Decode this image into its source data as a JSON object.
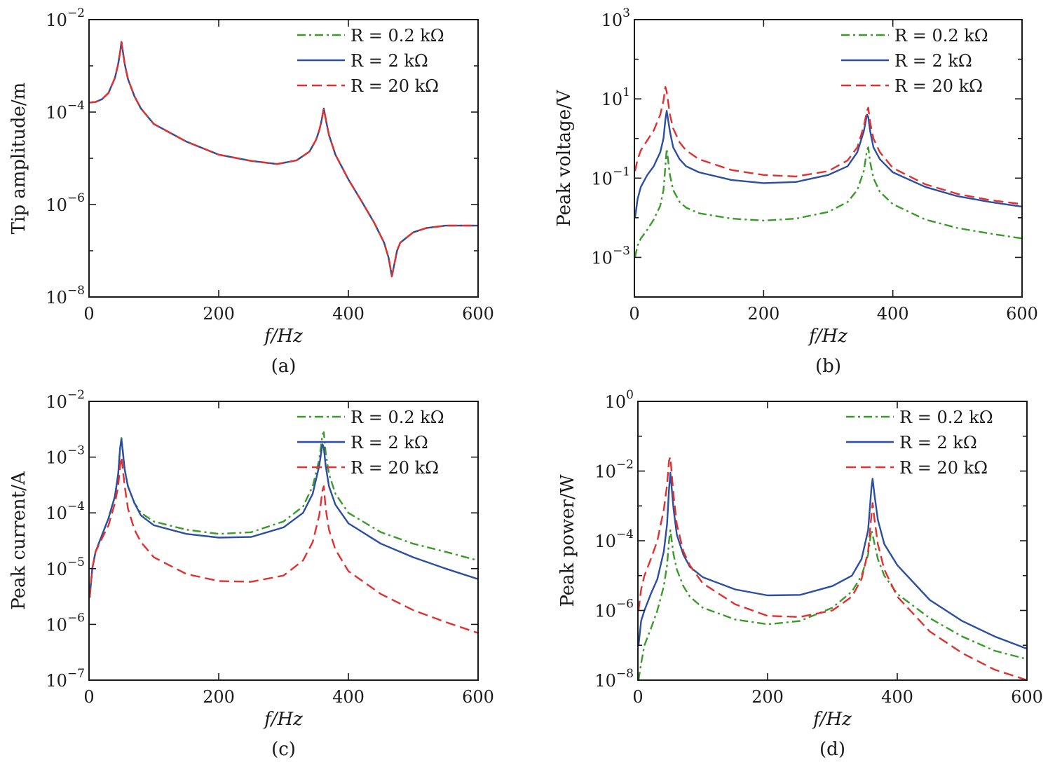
{
  "chart_data": [
    {
      "type": "line",
      "panel_label": "(a)",
      "xlabel": "f/Hz",
      "ylabel": "Tip amplitude/m",
      "xlim": [
        0,
        600
      ],
      "ylim": [
        1e-08,
        0.01
      ],
      "y_scale": "log",
      "x_ticks": [
        "0",
        "200",
        "400",
        "600"
      ],
      "y_ticks": [
        {
          "base": "10",
          "exp": "−8"
        },
        {
          "base": "10",
          "exp": "−6"
        },
        {
          "base": "10",
          "exp": "−4"
        },
        {
          "base": "10",
          "exp": "−2"
        }
      ],
      "legend_position": "top-right",
      "series": [
        {
          "name": "R = 0.2 kΩ",
          "color": "#3a9a2a",
          "dash": "dashdot",
          "x": [
            0,
            10,
            20,
            30,
            40,
            45,
            48,
            50,
            55,
            60,
            70,
            80,
            100,
            150,
            200,
            250,
            290,
            320,
            340,
            350,
            355,
            358,
            362,
            366,
            370,
            380,
            400,
            420,
            440,
            455,
            462,
            467,
            470,
            475,
            480,
            500,
            520,
            550,
            600
          ],
          "y": [
            0.00016,
            0.000165,
            0.00019,
            0.00026,
            0.00055,
            0.0011,
            0.002,
            0.0033,
            0.0011,
            0.00052,
            0.00022,
            0.00012,
            5.5e-05,
            2.3e-05,
            1.2e-05,
            8.8e-06,
            7.5e-06,
            9e-06,
            1.4e-05,
            2.5e-05,
            4e-05,
            6e-05,
            0.00012,
            6e-05,
            3.2e-05,
            1.2e-05,
            3.5e-06,
            1.2e-06,
            4e-07,
            1.5e-07,
            7e-08,
            2.8e-08,
            4.5e-08,
            1e-07,
            1.5e-07,
            2.5e-07,
            3.1e-07,
            3.5e-07,
            3.5e-07
          ]
        },
        {
          "name": "R = 2 kΩ",
          "color": "#2b4ea2",
          "dash": "solid",
          "x": [
            0,
            10,
            20,
            30,
            40,
            45,
            48,
            50,
            55,
            60,
            70,
            80,
            100,
            150,
            200,
            250,
            290,
            320,
            340,
            350,
            355,
            358,
            362,
            366,
            370,
            380,
            400,
            420,
            440,
            455,
            462,
            467,
            470,
            475,
            480,
            500,
            520,
            550,
            600
          ],
          "y": [
            0.00016,
            0.000165,
            0.00019,
            0.00026,
            0.00055,
            0.0011,
            0.002,
            0.0033,
            0.0011,
            0.00052,
            0.00022,
            0.00012,
            5.5e-05,
            2.3e-05,
            1.2e-05,
            8.8e-06,
            7.5e-06,
            9e-06,
            1.4e-05,
            2.5e-05,
            4e-05,
            6e-05,
            0.00012,
            6e-05,
            3.2e-05,
            1.2e-05,
            3.5e-06,
            1.2e-06,
            4e-07,
            1.5e-07,
            7e-08,
            2.8e-08,
            4.5e-08,
            1e-07,
            1.5e-07,
            2.5e-07,
            3.1e-07,
            3.5e-07,
            3.5e-07
          ]
        },
        {
          "name": "R = 20 kΩ",
          "color": "#e03030",
          "dash": "dashed",
          "x": [
            0,
            10,
            20,
            30,
            40,
            45,
            48,
            50,
            55,
            60,
            70,
            80,
            100,
            150,
            200,
            250,
            290,
            320,
            340,
            350,
            355,
            358,
            362,
            366,
            370,
            380,
            400,
            420,
            440,
            455,
            462,
            467,
            470,
            475,
            480,
            500,
            520,
            550,
            600
          ],
          "y": [
            0.00016,
            0.000165,
            0.00019,
            0.00026,
            0.00055,
            0.0011,
            0.002,
            0.0033,
            0.0011,
            0.00052,
            0.00022,
            0.00012,
            5.5e-05,
            2.3e-05,
            1.2e-05,
            8.8e-06,
            7.5e-06,
            9e-06,
            1.4e-05,
            2.5e-05,
            4e-05,
            6e-05,
            0.00012,
            6e-05,
            3.2e-05,
            1.2e-05,
            3.5e-06,
            1.2e-06,
            4e-07,
            1.5e-07,
            7e-08,
            2.8e-08,
            4.5e-08,
            1e-07,
            1.5e-07,
            2.5e-07,
            3.1e-07,
            3.5e-07,
            3.5e-07
          ]
        }
      ]
    },
    {
      "type": "line",
      "panel_label": "(b)",
      "xlabel": "f/Hz",
      "ylabel": "Peak voltage/V",
      "xlim": [
        0,
        600
      ],
      "ylim": [
        0.0001,
        1000
      ],
      "y_scale": "log",
      "x_ticks": [
        "0",
        "200",
        "400",
        "600"
      ],
      "y_ticks": [
        {
          "base": "10",
          "exp": "−3"
        },
        {
          "base": "10",
          "exp": "−1"
        },
        {
          "base": "10",
          "exp": "1"
        },
        {
          "base": "10",
          "exp": "3"
        }
      ],
      "legend_position": "top-right",
      "series": [
        {
          "name": "R = 0.2 kΩ",
          "color": "#3a9a2a",
          "dash": "dashdot",
          "x": [
            1,
            5,
            10,
            20,
            30,
            40,
            45,
            48,
            50,
            55,
            60,
            70,
            80,
            100,
            150,
            200,
            250,
            300,
            330,
            345,
            355,
            360,
            362,
            365,
            370,
            380,
            400,
            450,
            500,
            550,
            600
          ],
          "y": [
            0.001,
            0.002,
            0.003,
            0.005,
            0.009,
            0.02,
            0.05,
            0.2,
            0.55,
            0.12,
            0.05,
            0.025,
            0.018,
            0.013,
            0.0095,
            0.0085,
            0.0095,
            0.014,
            0.025,
            0.05,
            0.15,
            0.5,
            0.6,
            0.25,
            0.1,
            0.045,
            0.022,
            0.009,
            0.0055,
            0.004,
            0.003
          ]
        },
        {
          "name": "R = 2 kΩ",
          "color": "#2b4ea2",
          "dash": "solid",
          "x": [
            1,
            5,
            10,
            20,
            30,
            40,
            45,
            48,
            50,
            55,
            60,
            70,
            80,
            100,
            150,
            200,
            250,
            300,
            330,
            345,
            355,
            360,
            362,
            365,
            370,
            380,
            400,
            450,
            500,
            550,
            600
          ],
          "y": [
            0.01,
            0.03,
            0.06,
            0.12,
            0.2,
            0.45,
            1.0,
            3.0,
            5.0,
            1.5,
            0.6,
            0.3,
            0.2,
            0.14,
            0.09,
            0.075,
            0.08,
            0.12,
            0.2,
            0.45,
            1.5,
            4.0,
            3.5,
            1.5,
            0.6,
            0.3,
            0.14,
            0.06,
            0.035,
            0.025,
            0.019
          ]
        },
        {
          "name": "R = 20 kΩ",
          "color": "#e03030",
          "dash": "dashed",
          "x": [
            1,
            5,
            10,
            20,
            30,
            40,
            45,
            48,
            50,
            55,
            60,
            70,
            80,
            100,
            150,
            200,
            250,
            300,
            330,
            345,
            355,
            360,
            362,
            365,
            370,
            380,
            400,
            450,
            500,
            550,
            600
          ],
          "y": [
            0.15,
            0.3,
            0.5,
            0.9,
            1.6,
            4.0,
            9.0,
            20.0,
            15.0,
            4.0,
            1.8,
            0.8,
            0.5,
            0.3,
            0.16,
            0.12,
            0.11,
            0.15,
            0.28,
            0.6,
            2.0,
            5.0,
            6.0,
            2.5,
            1.0,
            0.45,
            0.18,
            0.07,
            0.04,
            0.028,
            0.022
          ]
        }
      ]
    },
    {
      "type": "line",
      "panel_label": "(c)",
      "xlabel": "f/Hz",
      "ylabel": "Peak current/A",
      "xlim": [
        0,
        600
      ],
      "ylim": [
        1e-07,
        0.01
      ],
      "y_scale": "log",
      "x_ticks": [
        "0",
        "200",
        "400",
        "600"
      ],
      "y_ticks": [
        {
          "base": "10",
          "exp": "−7"
        },
        {
          "base": "10",
          "exp": "−6"
        },
        {
          "base": "10",
          "exp": "−5"
        },
        {
          "base": "10",
          "exp": "−4"
        },
        {
          "base": "10",
          "exp": "−3"
        },
        {
          "base": "10",
          "exp": "−2"
        }
      ],
      "legend_position": "top-right",
      "series": [
        {
          "name": "R = 0.2 kΩ",
          "color": "#3a9a2a",
          "dash": "dashdot",
          "x": [
            1,
            5,
            10,
            20,
            30,
            40,
            45,
            48,
            50,
            55,
            60,
            70,
            80,
            100,
            150,
            200,
            250,
            300,
            330,
            345,
            355,
            360,
            362,
            365,
            370,
            380,
            400,
            450,
            500,
            550,
            600
          ],
          "y": [
            3e-06,
            1e-05,
            2e-05,
            4e-05,
            8e-05,
            0.0002,
            0.0005,
            0.0015,
            0.0022,
            0.0006,
            0.0003,
            0.00015,
            0.0001,
            7e-05,
            5e-05,
            4.2e-05,
            4.5e-05,
            7e-05,
            0.00013,
            0.0003,
            0.0009,
            0.0025,
            0.0028,
            0.0012,
            0.0005,
            0.00022,
            0.0001,
            4.5e-05,
            2.8e-05,
            2e-05,
            1.4e-05
          ]
        },
        {
          "name": "R = 2 kΩ",
          "color": "#2b4ea2",
          "dash": "solid",
          "x": [
            1,
            5,
            10,
            20,
            30,
            40,
            45,
            48,
            50,
            55,
            60,
            70,
            80,
            100,
            150,
            200,
            250,
            300,
            330,
            345,
            355,
            360,
            362,
            365,
            370,
            380,
            400,
            450,
            500,
            550,
            600
          ],
          "y": [
            3e-06,
            1e-05,
            2e-05,
            4e-05,
            8e-05,
            0.0002,
            0.0005,
            0.0015,
            0.0021,
            0.0006,
            0.0003,
            0.00015,
            9e-05,
            6e-05,
            4.2e-05,
            3.6e-05,
            3.7e-05,
            5.5e-05,
            0.0001,
            0.00022,
            0.0007,
            0.0017,
            0.0015,
            0.0007,
            0.0003,
            0.00014,
            6.5e-05,
            2.8e-05,
            1.6e-05,
            1e-05,
            6.5e-06
          ]
        },
        {
          "name": "R = 20 kΩ",
          "color": "#e03030",
          "dash": "dashed",
          "x": [
            1,
            5,
            10,
            20,
            30,
            40,
            45,
            48,
            50,
            55,
            60,
            70,
            80,
            100,
            150,
            200,
            250,
            300,
            330,
            345,
            355,
            360,
            362,
            365,
            370,
            380,
            400,
            450,
            500,
            550,
            600
          ],
          "y": [
            3e-06,
            1e-05,
            2e-05,
            3.5e-05,
            6e-05,
            0.00015,
            0.0003,
            0.0007,
            0.001,
            0.0003,
            0.00012,
            5e-05,
            3e-05,
            1.6e-05,
            8e-06,
            6e-06,
            5.8e-06,
            7.5e-06,
            1.4e-05,
            3e-05,
            9e-05,
            0.00025,
            0.0003,
            0.00012,
            5e-05,
            2.2e-05,
            9e-06,
            3.5e-06,
            1.8e-06,
            1.1e-06,
            7e-07
          ]
        }
      ]
    },
    {
      "type": "line",
      "panel_label": "(d)",
      "xlabel": "f/Hz",
      "ylabel": "Peak power/W",
      "xlim": [
        0,
        600
      ],
      "ylim": [
        1e-08,
        1
      ],
      "y_scale": "log",
      "x_ticks": [
        "0",
        "200",
        "400",
        "600"
      ],
      "y_ticks": [
        {
          "base": "10",
          "exp": "−8"
        },
        {
          "base": "10",
          "exp": "−6"
        },
        {
          "base": "10",
          "exp": "−4"
        },
        {
          "base": "10",
          "exp": "−2"
        },
        {
          "base": "10",
          "exp": "0"
        }
      ],
      "legend_position": "top-right",
      "series": [
        {
          "name": "R = 0.2 kΩ",
          "color": "#3a9a2a",
          "dash": "dashdot",
          "x": [
            1,
            5,
            10,
            20,
            30,
            40,
            45,
            48,
            50,
            55,
            60,
            70,
            80,
            100,
            150,
            200,
            250,
            300,
            330,
            345,
            355,
            360,
            362,
            365,
            370,
            380,
            400,
            450,
            500,
            550,
            600
          ],
          "y": [
            1e-08,
            3e-08,
            1e-07,
            3e-07,
            1e-06,
            5e-06,
            2e-05,
            0.0001,
            0.0002,
            4e-05,
            1.5e-05,
            5e-06,
            2.5e-06,
            1.2e-06,
            5.5e-07,
            4e-07,
            5e-07,
            1.2e-06,
            3.5e-06,
            1e-05,
            4e-05,
            0.0002,
            0.00015,
            8e-05,
            3e-05,
            1e-05,
            3e-06,
            6e-07,
            1.8e-07,
            7e-08,
            4e-08
          ]
        },
        {
          "name": "R = 2 kΩ",
          "color": "#2b4ea2",
          "dash": "solid",
          "x": [
            1,
            5,
            10,
            20,
            30,
            40,
            45,
            48,
            50,
            55,
            60,
            70,
            80,
            100,
            150,
            200,
            250,
            300,
            330,
            345,
            355,
            360,
            362,
            365,
            370,
            380,
            400,
            450,
            500,
            550,
            600
          ],
          "y": [
            1e-07,
            5e-07,
            1e-06,
            3e-06,
            8e-06,
            5e-05,
            0.0003,
            0.003,
            0.009,
            0.0008,
            0.00015,
            4e-05,
            1.8e-05,
            9e-06,
            4e-06,
            2.7e-06,
            2.8e-06,
            5e-06,
            1e-05,
            3e-05,
            0.0002,
            0.003,
            0.006,
            0.002,
            0.0004,
            8e-05,
            2e-05,
            2e-06,
            5e-07,
            1.8e-07,
            8e-08
          ]
        },
        {
          "name": "R = 20 kΩ",
          "color": "#e03030",
          "dash": "dashed",
          "x": [
            1,
            5,
            10,
            20,
            30,
            40,
            45,
            48,
            50,
            55,
            60,
            70,
            80,
            100,
            150,
            200,
            250,
            300,
            330,
            345,
            355,
            360,
            362,
            365,
            370,
            380,
            400,
            450,
            500,
            550,
            600
          ],
          "y": [
            1e-06,
            4e-06,
            1e-05,
            3e-05,
            0.0001,
            0.0008,
            0.004,
            0.02,
            0.025,
            0.002,
            0.0003,
            5e-05,
            2e-05,
            6e-06,
            1.5e-06,
            7e-07,
            6.5e-07,
            1e-06,
            2.5e-06,
            8e-06,
            5e-05,
            0.0005,
            0.0012,
            0.0004,
            8e-05,
            1.5e-05,
            2.5e-06,
            2.5e-07,
            6e-08,
            2e-08,
            1e-08
          ]
        }
      ]
    }
  ]
}
